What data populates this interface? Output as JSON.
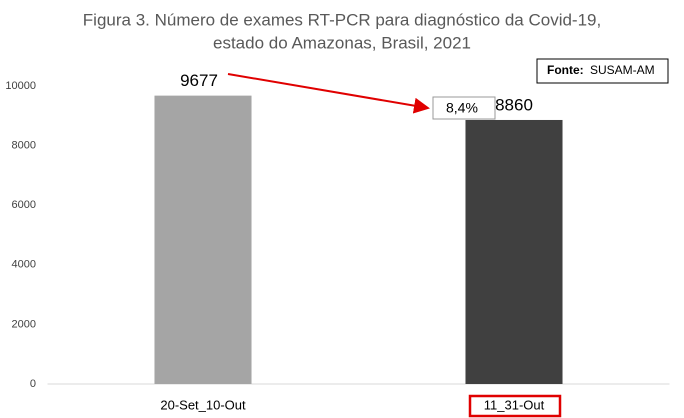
{
  "chart_data": {
    "type": "bar",
    "title": [
      "Figura 3. Número de exames RT-PCR para diagnóstico da Covid-19,",
      "estado do Amazonas, Brasil, 2021"
    ],
    "categories": [
      "20-Set_10-Out",
      "11_31-Out"
    ],
    "values": [
      9677,
      8860
    ],
    "colors": [
      "#a5a5a5",
      "#404040"
    ],
    "ylim": [
      0,
      10000
    ],
    "yticks": [
      0,
      2000,
      4000,
      6000,
      8000,
      10000
    ],
    "grid": false,
    "source_label": "Fonte:",
    "source": "SUSAM-AM",
    "annotation": "8,4%"
  }
}
